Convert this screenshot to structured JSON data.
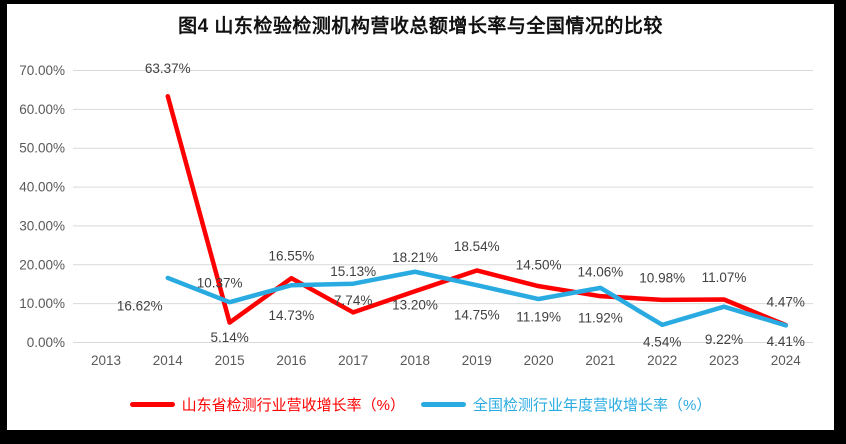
{
  "title": "图4  山东检验检测机构营收总额增长率与全国情况的比较",
  "chart_data": {
    "type": "line",
    "title": "图4  山东检验检测机构营收总额增长率与全国情况的比较",
    "categories": [
      "2013",
      "2014",
      "2015",
      "2016",
      "2017",
      "2018",
      "2019",
      "2020",
      "2021",
      "2022",
      "2023",
      "2024"
    ],
    "series": [
      {
        "name": "山东省检测行业营收增长率（%）",
        "color": "#FF0000",
        "values": [
          null,
          63.37,
          5.14,
          16.55,
          7.74,
          13.2,
          18.54,
          14.5,
          11.92,
          10.98,
          11.07,
          4.47
        ],
        "labels": [
          null,
          "63.37%",
          "5.14%",
          "16.55%",
          "7.74%",
          "13.20%",
          "18.54%",
          "14.50%",
          "11.92%",
          "10.98%",
          "11.07%",
          "4.47%"
        ],
        "label_offsets": [
          null,
          [
            0,
            -28
          ],
          [
            0,
            15
          ],
          [
            0,
            -22
          ],
          [
            0,
            -12
          ],
          [
            0,
            14
          ],
          [
            0,
            -24
          ],
          [
            0,
            -21
          ],
          [
            0,
            22
          ],
          [
            0,
            -22
          ],
          [
            0,
            -22
          ],
          [
            0,
            -23
          ]
        ]
      },
      {
        "name": "全国检测行业年度营收增长率（%）",
        "color": "#29ABE2",
        "values": [
          null,
          16.62,
          10.37,
          14.73,
          15.13,
          18.21,
          14.75,
          11.19,
          14.06,
          4.54,
          9.22,
          4.41
        ],
        "labels": [
          null,
          "16.62%",
          "10.37%",
          "14.73%",
          "15.13%",
          "18.21%",
          "14.75%",
          "11.19%",
          "14.06%",
          "4.54%",
          "9.22%",
          "4.41%"
        ],
        "label_offsets": [
          null,
          [
            -28,
            28
          ],
          [
            -10,
            -19
          ],
          [
            0,
            30
          ],
          [
            0,
            -12
          ],
          [
            0,
            -14
          ],
          [
            0,
            30
          ],
          [
            0,
            18
          ],
          [
            0,
            -16
          ],
          [
            0,
            17
          ],
          [
            0,
            33
          ],
          [
            0,
            16
          ]
        ]
      }
    ],
    "xlabel": "",
    "ylabel": "",
    "ylim": [
      0,
      70
    ],
    "y_ticks": [
      "0.00%",
      "10.00%",
      "20.00%",
      "30.00%",
      "40.00%",
      "50.00%",
      "60.00%",
      "70.00%"
    ],
    "grid": true,
    "legend_position": "bottom"
  },
  "style": {
    "grid_color": "#D9D9D9",
    "axis_text_color": "#595959",
    "data_label_color": "#404040"
  }
}
